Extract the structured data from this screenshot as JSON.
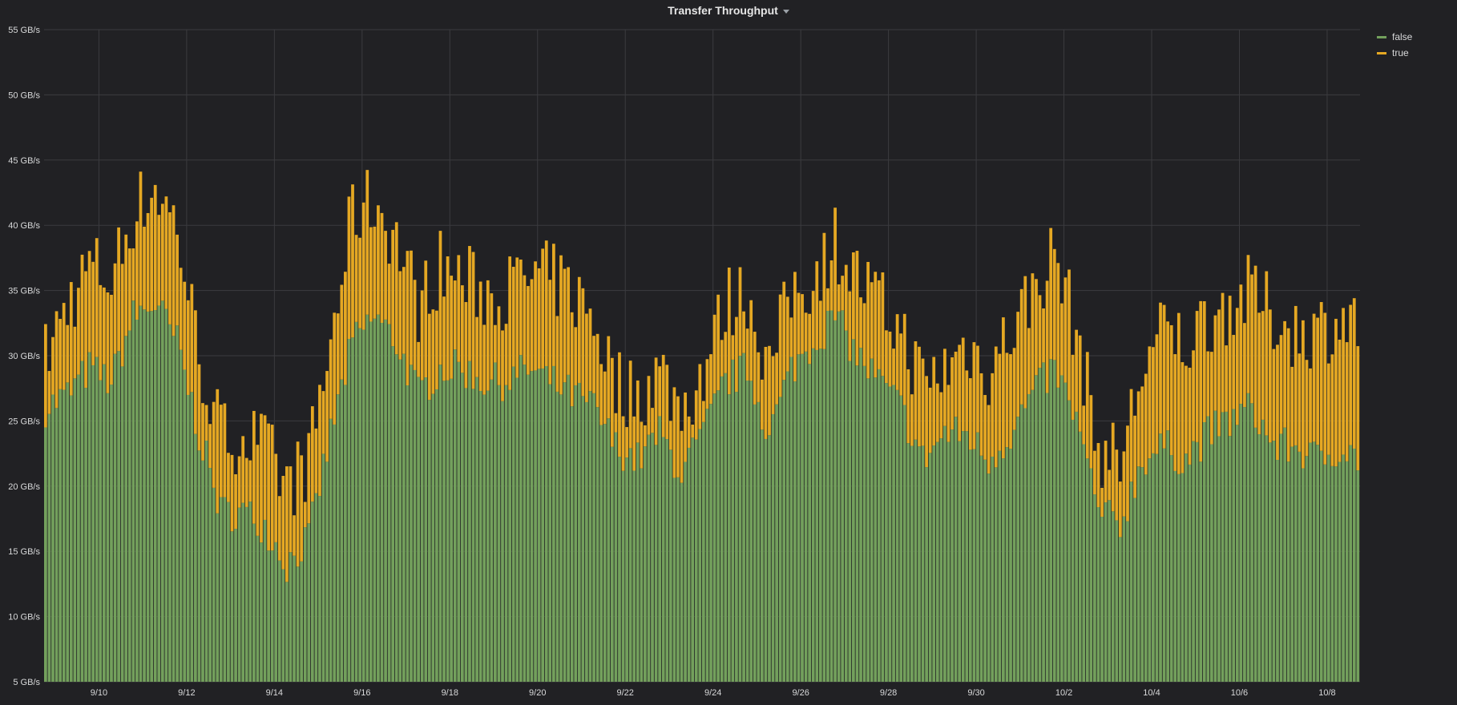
{
  "panel": {
    "title": "Transfer Throughput"
  },
  "colors": {
    "background": "#212124",
    "grid": "#3b3b3f",
    "false": "#73a05c",
    "true": "#e5a823",
    "text": "#d8d9da"
  },
  "chart_data": {
    "type": "bar",
    "stacked": true,
    "title": "Transfer Throughput",
    "x_range": [
      "9/8 18:00",
      "10/8 18:00"
    ],
    "ylim": [
      5,
      55
    ],
    "y_unit": "GB/s",
    "y_ticks": [
      5,
      10,
      15,
      20,
      25,
      30,
      35,
      40,
      45,
      50,
      55
    ],
    "y_tick_labels": [
      "5 GB/s",
      "10 GB/s",
      "15 GB/s",
      "20 GB/s",
      "25 GB/s",
      "30 GB/s",
      "35 GB/s",
      "40 GB/s",
      "45 GB/s",
      "50 GB/s",
      "55 GB/s"
    ],
    "x_tick_labels": [
      "9/10",
      "9/12",
      "9/14",
      "9/16",
      "9/18",
      "9/20",
      "9/22",
      "9/24",
      "9/26",
      "9/28",
      "9/30",
      "10/2",
      "10/4",
      "10/6",
      "10/8"
    ],
    "grid": true,
    "legend_position": "top-right",
    "legend": [
      "false",
      "true"
    ],
    "resolution_hours": 2,
    "series": [
      {
        "name": "false",
        "color": "#73a05c",
        "points": [
          [
            "9/8 18:00",
            26
          ],
          [
            "9/9 06:00",
            27
          ],
          [
            "9/9 18:00",
            29
          ],
          [
            "9/10 06:00",
            28
          ],
          [
            "9/10 18:00",
            33
          ],
          [
            "9/11 06:00",
            34
          ],
          [
            "9/11 18:00",
            31
          ],
          [
            "9/12 06:00",
            24
          ],
          [
            "9/12 18:00",
            18
          ],
          [
            "9/13 06:00",
            18
          ],
          [
            "9/13 18:00",
            17
          ],
          [
            "9/14 06:00",
            14
          ],
          [
            "9/14 18:00",
            16
          ],
          [
            "9/15 06:00",
            24
          ],
          [
            "9/15 18:00",
            31
          ],
          [
            "9/16 06:00",
            33
          ],
          [
            "9/16 18:00",
            31
          ],
          [
            "9/17 06:00",
            27
          ],
          [
            "9/17 18:00",
            29
          ],
          [
            "9/18 06:00",
            29
          ],
          [
            "9/18 18:00",
            28
          ],
          [
            "9/19 06:00",
            28
          ],
          [
            "9/19 18:00",
            29
          ],
          [
            "9/20 06:00",
            28
          ],
          [
            "9/20 18:00",
            27
          ],
          [
            "9/21 06:00",
            26
          ],
          [
            "9/21 18:00",
            23
          ],
          [
            "9/22 06:00",
            22
          ],
          [
            "9/22 18:00",
            24
          ],
          [
            "9/23 06:00",
            21
          ],
          [
            "9/23 18:00",
            24
          ],
          [
            "9/24 06:00",
            28
          ],
          [
            "9/24 18:00",
            29
          ],
          [
            "9/25 06:00",
            24
          ],
          [
            "9/25 18:00",
            29
          ],
          [
            "9/26 06:00",
            31
          ],
          [
            "9/26 18:00",
            33
          ],
          [
            "9/27 06:00",
            30
          ],
          [
            "9/27 18:00",
            28
          ],
          [
            "9/28 06:00",
            26
          ],
          [
            "9/28 18:00",
            22
          ],
          [
            "9/29 06:00",
            24
          ],
          [
            "9/29 18:00",
            24
          ],
          [
            "9/30 06:00",
            22
          ],
          [
            "9/30 18:00",
            24
          ],
          [
            "10/1 06:00",
            27
          ],
          [
            "10/1 18:00",
            29
          ],
          [
            "10/2 06:00",
            25
          ],
          [
            "10/2 18:00",
            18
          ],
          [
            "10/3 06:00",
            17
          ],
          [
            "10/3 18:00",
            22
          ],
          [
            "10/4 06:00",
            23
          ],
          [
            "10/4 18:00",
            22
          ],
          [
            "10/5 06:00",
            24
          ],
          [
            "10/5 18:00",
            25
          ],
          [
            "10/6 06:00",
            26
          ],
          [
            "10/6 18:00",
            23
          ],
          [
            "10/7 06:00",
            23
          ],
          [
            "10/7 18:00",
            22
          ],
          [
            "10/8 06:00",
            23
          ],
          [
            "10/8 18:00",
            22
          ]
        ]
      },
      {
        "name": "true",
        "color": "#e5a823",
        "points": [
          [
            "9/8 18:00",
            29
          ],
          [
            "9/9 06:00",
            33
          ],
          [
            "9/9 18:00",
            36
          ],
          [
            "9/10 06:00",
            35
          ],
          [
            "9/10 18:00",
            40
          ],
          [
            "9/11 06:00",
            42
          ],
          [
            "9/11 18:00",
            39
          ],
          [
            "9/12 06:00",
            29
          ],
          [
            "9/12 18:00",
            23
          ],
          [
            "9/13 06:00",
            23
          ],
          [
            "9/13 18:00",
            22
          ],
          [
            "9/14 06:00",
            19
          ],
          [
            "9/14 18:00",
            21
          ],
          [
            "9/15 06:00",
            30
          ],
          [
            "9/15 18:00",
            40
          ],
          [
            "9/16 06:00",
            41
          ],
          [
            "9/16 18:00",
            38
          ],
          [
            "9/17 06:00",
            33
          ],
          [
            "9/17 18:00",
            36
          ],
          [
            "9/18 06:00",
            35
          ],
          [
            "9/18 18:00",
            34
          ],
          [
            "9/19 06:00",
            34
          ],
          [
            "9/19 18:00",
            35
          ],
          [
            "9/20 06:00",
            35
          ],
          [
            "9/20 18:00",
            34
          ],
          [
            "9/21 06:00",
            32
          ],
          [
            "9/21 18:00",
            27
          ],
          [
            "9/22 06:00",
            26
          ],
          [
            "9/22 18:00",
            28
          ],
          [
            "9/23 06:00",
            25
          ],
          [
            "9/23 18:00",
            28
          ],
          [
            "9/24 06:00",
            33
          ],
          [
            "9/24 18:00",
            34
          ],
          [
            "9/25 06:00",
            28
          ],
          [
            "9/25 18:00",
            34
          ],
          [
            "9/26 06:00",
            35
          ],
          [
            "9/26 18:00",
            38
          ],
          [
            "9/27 06:00",
            35
          ],
          [
            "9/27 18:00",
            33
          ],
          [
            "9/28 06:00",
            31
          ],
          [
            "9/28 18:00",
            27
          ],
          [
            "9/29 06:00",
            28
          ],
          [
            "9/29 18:00",
            30
          ],
          [
            "9/30 06:00",
            28
          ],
          [
            "9/30 18:00",
            31
          ],
          [
            "10/1 06:00",
            34
          ],
          [
            "10/1 18:00",
            37
          ],
          [
            "10/2 06:00",
            31
          ],
          [
            "10/2 18:00",
            22
          ],
          [
            "10/3 06:00",
            21
          ],
          [
            "10/3 18:00",
            28
          ],
          [
            "10/4 06:00",
            31
          ],
          [
            "10/4 18:00",
            30
          ],
          [
            "10/5 06:00",
            32
          ],
          [
            "10/5 18:00",
            33
          ],
          [
            "10/6 06:00",
            34
          ],
          [
            "10/6 18:00",
            32
          ],
          [
            "10/7 06:00",
            31
          ],
          [
            "10/7 18:00",
            31
          ],
          [
            "10/8 06:00",
            32
          ],
          [
            "10/8 18:00",
            31
          ]
        ]
      }
    ]
  }
}
